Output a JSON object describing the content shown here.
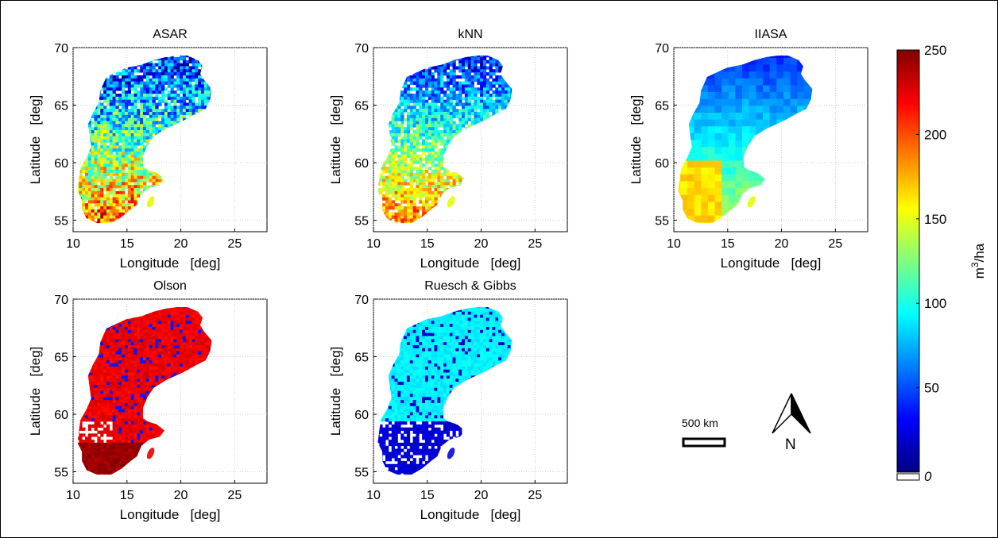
{
  "panels": [
    {
      "id": "asar",
      "title": "ASAR",
      "xlabel": "Longitude   [deg]",
      "ylabel": "Latitude   [deg]",
      "style": "mixed"
    },
    {
      "id": "knn",
      "title": "kNN",
      "xlabel": "Longitude   [deg]",
      "ylabel": "Latitude   [deg]",
      "style": "mixed-light"
    },
    {
      "id": "iiasa",
      "title": "IIASA",
      "xlabel": "Longitude   [deg]",
      "ylabel": "Latitude   [deg]",
      "style": "blocky"
    },
    {
      "id": "olson",
      "title": "Olson",
      "xlabel": "Longitude   [deg]",
      "ylabel": "Latitude   [deg]",
      "style": "red"
    },
    {
      "id": "ruesch",
      "title": "Ruesch & Gibbs",
      "xlabel": "Longitude   [deg]",
      "ylabel": "Latitude   [deg]",
      "style": "blue"
    }
  ],
  "axes": {
    "xlim": [
      10,
      28
    ],
    "ylim": [
      54,
      70
    ],
    "xticks": [
      "10",
      "15",
      "20",
      "25"
    ],
    "yticks": [
      "55",
      "60",
      "65",
      "70"
    ]
  },
  "colorbar": {
    "min": 0,
    "max": 250,
    "ticks": [
      "250",
      "200",
      "150",
      "100",
      "50"
    ],
    "zero_label": "0",
    "unit_base": "m",
    "unit_exp": "3",
    "unit_rest": "/ha",
    "colormap": "jet"
  },
  "scalebar": {
    "label": "500  km"
  },
  "north_arrow": {
    "label": "N"
  }
}
